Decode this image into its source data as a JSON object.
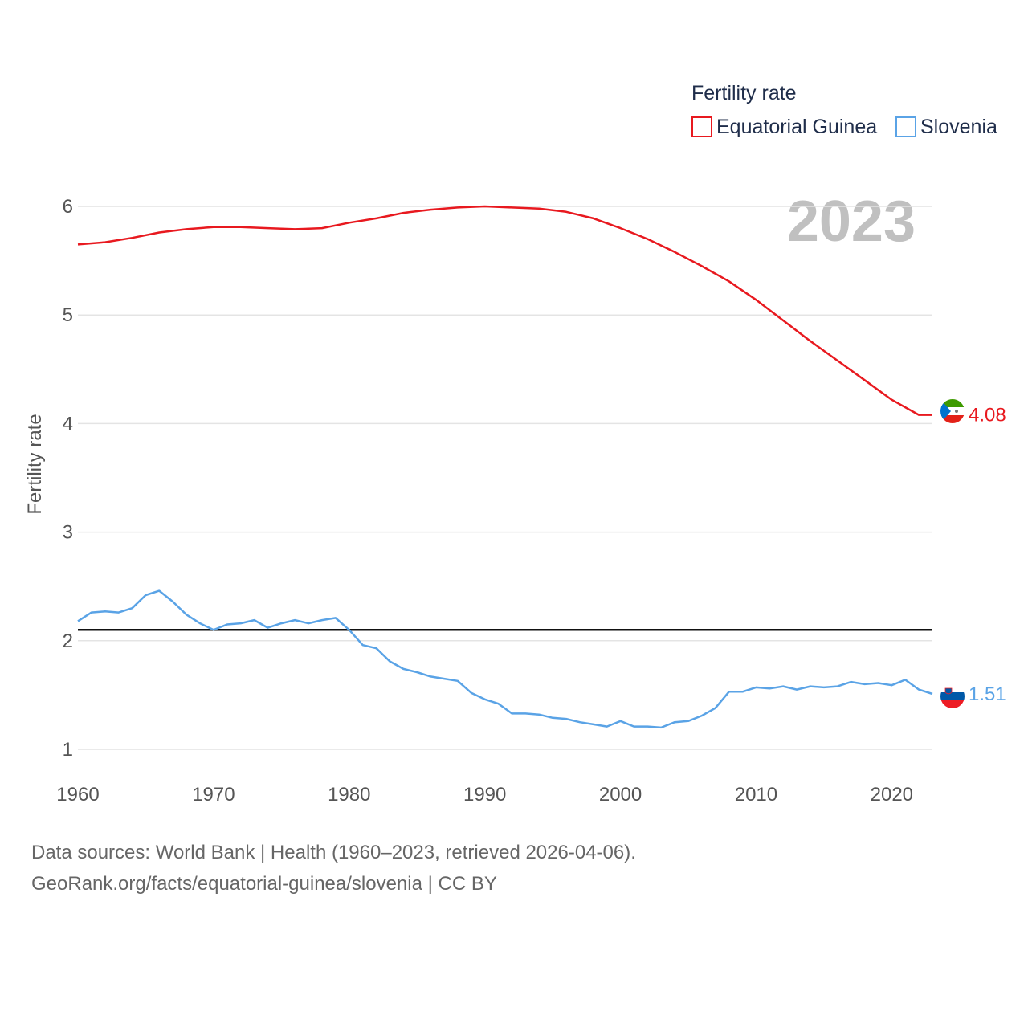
{
  "chart_data": {
    "type": "line",
    "title": "",
    "ylabel": "Fertility rate",
    "xlabel": "",
    "xlim": [
      1960,
      2023
    ],
    "ylim": [
      0.8,
      6.2
    ],
    "yticks": [
      1,
      2,
      3,
      4,
      5,
      6
    ],
    "xticks": [
      1960,
      1970,
      1980,
      1990,
      2000,
      2010,
      2020
    ],
    "reference_line": 2.1,
    "current_year": "2023",
    "legend_title": "Fertility rate",
    "legend_position": "top-right",
    "series": [
      {
        "name": "Equatorial Guinea",
        "color": "#e8191f",
        "end_label": "4.08",
        "flag": "equatorial-guinea-flag-icon",
        "x": [
          1960,
          1962,
          1964,
          1966,
          1968,
          1970,
          1972,
          1974,
          1976,
          1978,
          1980,
          1982,
          1984,
          1986,
          1988,
          1990,
          1992,
          1994,
          1996,
          1998,
          2000,
          2002,
          2004,
          2006,
          2008,
          2010,
          2012,
          2014,
          2016,
          2018,
          2020,
          2022,
          2023
        ],
        "values": [
          5.65,
          5.67,
          5.71,
          5.76,
          5.79,
          5.81,
          5.81,
          5.8,
          5.79,
          5.8,
          5.85,
          5.89,
          5.94,
          5.97,
          5.99,
          6.0,
          5.99,
          5.98,
          5.95,
          5.89,
          5.8,
          5.7,
          5.58,
          5.45,
          5.31,
          5.14,
          4.95,
          4.76,
          4.58,
          4.4,
          4.22,
          4.08,
          4.08
        ]
      },
      {
        "name": "Slovenia",
        "color": "#5aa3e6",
        "end_label": "1.51",
        "flag": "slovenia-flag-icon",
        "x": [
          1960,
          1961,
          1962,
          1963,
          1964,
          1965,
          1966,
          1967,
          1968,
          1969,
          1970,
          1971,
          1972,
          1973,
          1974,
          1975,
          1976,
          1977,
          1978,
          1979,
          1980,
          1981,
          1982,
          1983,
          1984,
          1985,
          1986,
          1987,
          1988,
          1989,
          1990,
          1991,
          1992,
          1993,
          1994,
          1995,
          1996,
          1997,
          1998,
          1999,
          2000,
          2001,
          2002,
          2003,
          2004,
          2005,
          2006,
          2007,
          2008,
          2009,
          2010,
          2011,
          2012,
          2013,
          2014,
          2015,
          2016,
          2017,
          2018,
          2019,
          2020,
          2021,
          2022,
          2023
        ],
        "values": [
          2.18,
          2.26,
          2.27,
          2.26,
          2.3,
          2.42,
          2.46,
          2.36,
          2.24,
          2.16,
          2.1,
          2.15,
          2.16,
          2.19,
          2.12,
          2.16,
          2.19,
          2.16,
          2.19,
          2.21,
          2.1,
          1.96,
          1.93,
          1.81,
          1.74,
          1.71,
          1.67,
          1.65,
          1.63,
          1.52,
          1.46,
          1.42,
          1.33,
          1.33,
          1.32,
          1.29,
          1.28,
          1.25,
          1.23,
          1.21,
          1.26,
          1.21,
          1.21,
          1.2,
          1.25,
          1.26,
          1.31,
          1.38,
          1.53,
          1.53,
          1.57,
          1.56,
          1.58,
          1.55,
          1.58,
          1.57,
          1.58,
          1.62,
          1.6,
          1.61,
          1.59,
          1.64,
          1.55,
          1.51
        ]
      }
    ]
  },
  "source": {
    "line1": "Data sources: World Bank | Health (1960–2023, retrieved 2026-04-06).",
    "line2": "GeoRank.org/facts/equatorial-guinea/slovenia | CC BY"
  }
}
